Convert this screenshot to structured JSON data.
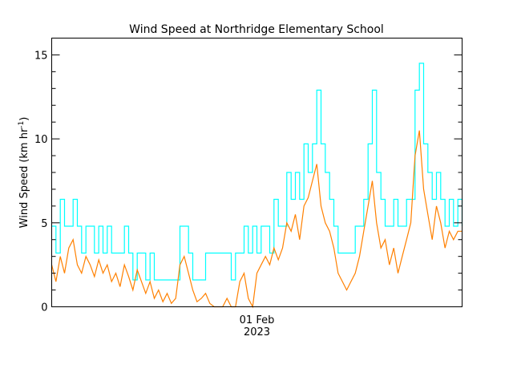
{
  "chart_data": {
    "type": "line",
    "title": "Wind Speed at Northridge Elementary School",
    "ylabel": "Wind Speed (km hr",
    "ylabel_superscript": "-1",
    "ylabel_close": ")",
    "ylim": [
      0,
      16
    ],
    "yticks": [
      0,
      5,
      10,
      15
    ],
    "xlim": [
      "2023-01-28 00:00",
      "2023-02-05 00:00"
    ],
    "xtick": {
      "date": "2023-02-01 00:00",
      "label_line1": "01 Feb",
      "label_line2": "2023"
    },
    "time_start": "2023-01-28 00:00",
    "time_step_hours": 2,
    "grid": false,
    "series": [
      {
        "color": "#00ffff",
        "style": "step",
        "values": [
          4.8,
          3.2,
          6.4,
          4.8,
          4.8,
          6.4,
          4.8,
          3.2,
          4.8,
          4.8,
          3.2,
          4.8,
          3.2,
          4.8,
          3.2,
          3.2,
          3.2,
          4.8,
          3.2,
          1.6,
          3.2,
          3.2,
          1.6,
          3.2,
          1.6,
          1.6,
          1.6,
          1.6,
          1.6,
          1.6,
          4.8,
          4.8,
          3.2,
          1.6,
          1.6,
          1.6,
          3.2,
          3.2,
          3.2,
          3.2,
          3.2,
          3.2,
          1.6,
          3.2,
          3.2,
          4.8,
          3.2,
          4.8,
          3.2,
          4.8,
          4.8,
          3.2,
          6.4,
          4.8,
          4.8,
          8.0,
          6.4,
          8.0,
          6.4,
          9.7,
          8.0,
          9.7,
          12.9,
          9.7,
          8.0,
          6.4,
          4.8,
          3.2,
          3.2,
          3.2,
          3.2,
          4.8,
          4.8,
          6.4,
          9.7,
          12.9,
          8.0,
          6.4,
          4.8,
          4.8,
          6.4,
          4.8,
          4.8,
          6.4,
          6.4,
          12.9,
          14.5,
          9.7,
          8.0,
          6.4,
          8.0,
          6.4,
          4.8,
          6.4,
          4.8,
          6.4,
          4.8
        ]
      },
      {
        "color": "#ff8000",
        "style": "line",
        "values": [
          2.5,
          1.5,
          3.0,
          2.0,
          3.5,
          4.0,
          2.5,
          2.0,
          3.0,
          2.5,
          1.8,
          2.8,
          2.0,
          2.5,
          1.5,
          2.0,
          1.2,
          2.5,
          1.8,
          1.0,
          2.2,
          1.5,
          0.8,
          1.5,
          0.5,
          1.0,
          0.3,
          0.8,
          0.2,
          0.5,
          2.5,
          3.0,
          2.0,
          1.0,
          0.3,
          0.5,
          0.8,
          0.2,
          0.0,
          0.0,
          0.0,
          0.5,
          0.0,
          0.0,
          1.5,
          2.0,
          0.5,
          0.0,
          2.0,
          2.5,
          3.0,
          2.5,
          3.5,
          2.8,
          3.5,
          5.0,
          4.5,
          5.5,
          4.0,
          6.0,
          6.5,
          7.5,
          8.5,
          6.0,
          5.0,
          4.5,
          3.5,
          2.0,
          1.5,
          1.0,
          1.5,
          2.0,
          3.0,
          4.5,
          6.0,
          7.5,
          5.0,
          3.5,
          4.0,
          2.5,
          3.5,
          2.0,
          3.0,
          4.0,
          5.0,
          9.0,
          10.5,
          7.0,
          5.5,
          4.0,
          6.0,
          5.0,
          3.5,
          4.5,
          4.0,
          4.5,
          4.5
        ]
      }
    ]
  }
}
